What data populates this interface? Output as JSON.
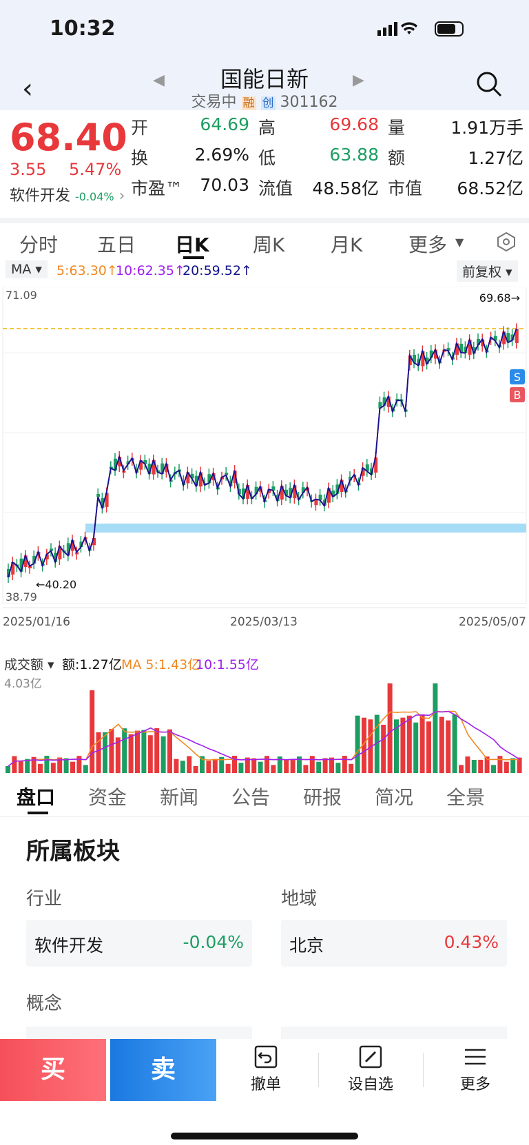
{
  "status": {
    "time": "10:32"
  },
  "header": {
    "title": "国能日新",
    "status": "交易中",
    "tag1": "融",
    "tag2": "创",
    "code": "301162"
  },
  "quote": {
    "price": "68.40",
    "change": "3.55",
    "change_pct": "5.47%",
    "sector": "软件开发",
    "sector_pct": "-0.04%",
    "fields": [
      {
        "label": "开",
        "value": "64.69",
        "color": "green"
      },
      {
        "label": "高",
        "value": "69.68",
        "color": "red"
      },
      {
        "label": "量",
        "value": "1.91万手",
        "color": "black"
      },
      {
        "label": "换",
        "value": "2.69%",
        "color": "black"
      },
      {
        "label": "低",
        "value": "63.88",
        "color": "green"
      },
      {
        "label": "额",
        "value": "1.27亿",
        "color": "black"
      },
      {
        "label": "市盈™",
        "value": "70.03",
        "color": "black"
      },
      {
        "label": "流值",
        "value": "48.58亿",
        "color": "black"
      },
      {
        "label": "市值",
        "value": "68.52亿",
        "color": "black"
      }
    ]
  },
  "period_tabs": [
    "分时",
    "五日",
    "日K",
    "周K",
    "月K",
    "更多"
  ],
  "ma": {
    "selector": "MA",
    "ma5": "5:63.30↑",
    "ma10": "10:62.35↑",
    "ma20": "20:59.52↑",
    "adjust": "前复权"
  },
  "kchart": {
    "max_label": "71.09",
    "min_label": "38.79",
    "high_mark": "69.68→",
    "low_mark": "←40.20",
    "dates": [
      "2025/01/16",
      "2025/03/13",
      "2025/05/07"
    ],
    "badge_s": "S",
    "badge_b": "B"
  },
  "volume": {
    "selector": "成交额",
    "amount": "额:1.27亿",
    "ma5": "MA 5:1.43亿",
    "ma10": "10:1.55亿",
    "max_label": "4.03亿"
  },
  "info_tabs": [
    "盘口",
    "资金",
    "新闻",
    "公告",
    "研报",
    "简况",
    "全景"
  ],
  "section": {
    "title": "所属板块",
    "industry_label": "行业",
    "region_label": "地域",
    "industry": "软件开发",
    "industry_pct": "-0.04%",
    "region": "北京",
    "region_pct": "0.43%",
    "concept_label": "概念"
  },
  "footer": {
    "buy": "买",
    "sell": "卖",
    "cancel": "撤单",
    "watch": "设自选",
    "more": "更多"
  },
  "colors": {
    "up": "#e8383b",
    "down": "#1c9e62",
    "ma5": "#f08a24",
    "ma10": "#a020f0",
    "ma20": "#14148c",
    "support": "#a6dcf5",
    "dashed": "#f0b400",
    "buy": "#f5555f",
    "sell": "#1e88e5"
  }
}
